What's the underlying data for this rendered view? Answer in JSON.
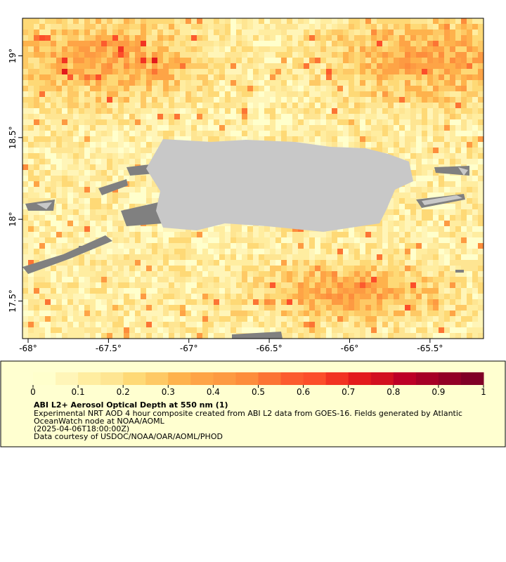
{
  "map": {
    "xlim": [
      -68.035,
      -65.167
    ],
    "ylim": [
      17.27,
      19.23
    ],
    "xticks": [
      {
        "value": -68,
        "label": "-68°"
      },
      {
        "value": -67.5,
        "label": "-67.5°"
      },
      {
        "value": -67,
        "label": "-67°"
      },
      {
        "value": -66.5,
        "label": "-66.5°"
      },
      {
        "value": -66,
        "label": "-66°"
      },
      {
        "value": -65.5,
        "label": "-65.5°"
      }
    ],
    "yticks": [
      {
        "value": 17.5,
        "label": "17.5°"
      },
      {
        "value": 18,
        "label": "18°"
      },
      {
        "value": 18.5,
        "label": "18.5°"
      },
      {
        "value": 19,
        "label": "19°"
      }
    ]
  },
  "colorbar": {
    "range": [
      0,
      1
    ],
    "ticks": [
      0,
      0.1,
      0.2,
      0.3,
      0.4,
      0.5,
      0.6,
      0.7,
      0.8,
      0.9,
      1
    ],
    "colors": [
      "#ffffcc",
      "#fff5b8",
      "#ffeda0",
      "#fee592",
      "#fed976",
      "#fec965",
      "#feb24c",
      "#fea446",
      "#fd9a42",
      "#fd8d3c",
      "#fc7434",
      "#fc5b2e",
      "#fc4e2a",
      "#f23322",
      "#e31a1c",
      "#d2101f",
      "#bd0026",
      "#a60026",
      "#920026",
      "#800026"
    ]
  },
  "caption": {
    "title": "ABI L2+ Aerosol Optical Depth at 550 nm (1)",
    "lines": [
      "Experimental NRT AOD 4 hour composite created from ABI L2 data from GOES-16. Fields generated by Atlantic",
      "OceanWatch node at NOAA/AOML",
      "(2025-04-06T18:00:00Z)",
      "Data courtesy of USDOC/NOAA/OAR/AOML/PHOD"
    ]
  }
}
